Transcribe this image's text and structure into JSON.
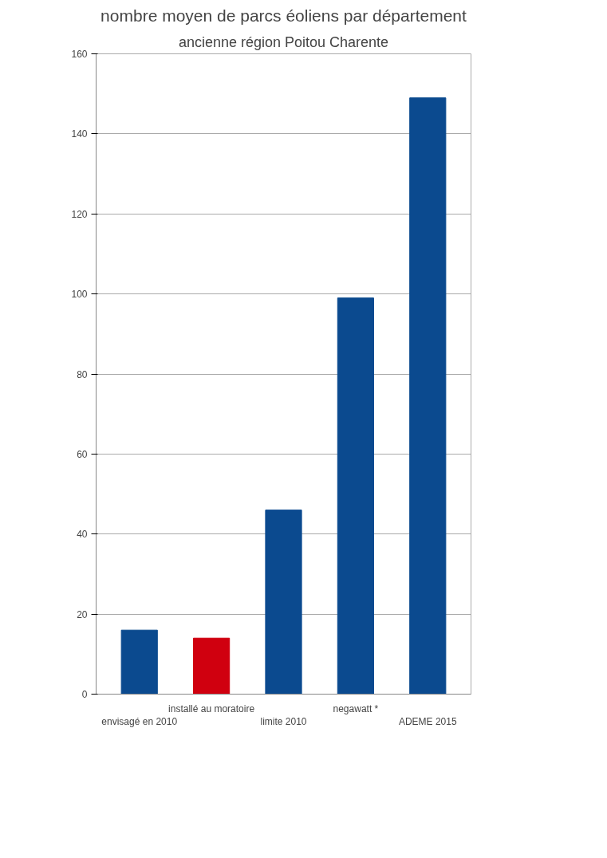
{
  "chart_data": {
    "type": "bar",
    "title": "nombre moyen de parcs éoliens par département",
    "subtitle": "ancienne région Poitou Charente",
    "categories": [
      "envisagé en 2010",
      "installé au moratoire",
      "limite 2010",
      "negawatt *",
      "ADEME 2015"
    ],
    "values": [
      16,
      14,
      46,
      99,
      149
    ],
    "colors": [
      "#0b4a8f",
      "#d0000f",
      "#0b4a8f",
      "#0b4a8f",
      "#0b4a8f"
    ],
    "ylim": [
      0,
      160
    ],
    "yticks": [
      0,
      20,
      40,
      60,
      80,
      100,
      120,
      140,
      160
    ],
    "grid": "y"
  }
}
